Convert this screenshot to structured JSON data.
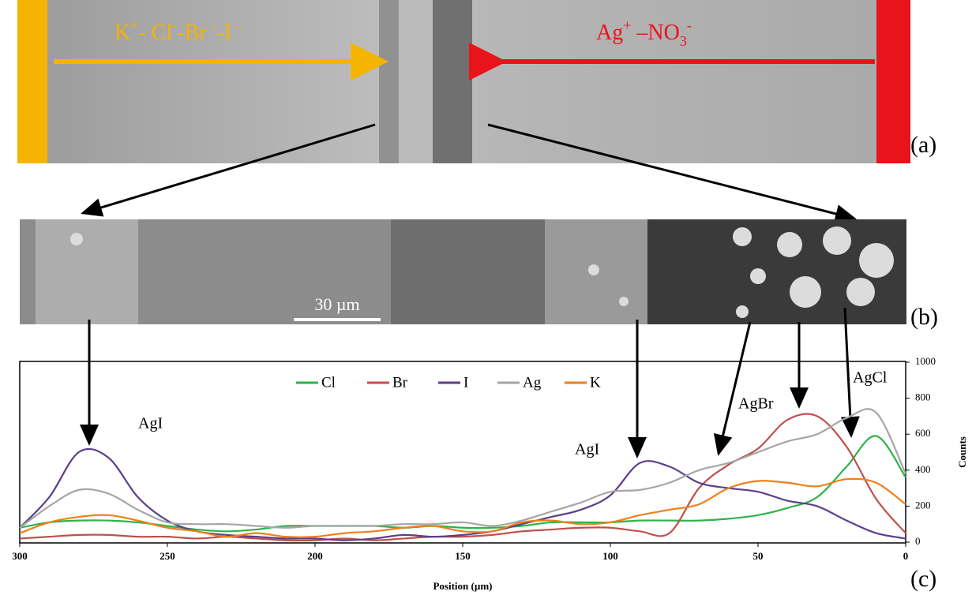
{
  "figure": {
    "panel_labels": [
      "(a)",
      "(b)",
      "(c)"
    ],
    "ions_left": [
      {
        "base": "K",
        "sup": "+"
      },
      {
        "base": "- Cl",
        "sup": "-"
      },
      {
        "base": "-Br ",
        "sup": "-"
      },
      {
        "base": "-I ",
        "sup": "-"
      }
    ],
    "ions_right": [
      {
        "base": "Ag",
        "sup": "+"
      },
      {
        "base": " –NO",
        "sub": "3",
        "sup": "-"
      }
    ],
    "scale_bar": "30 µm"
  },
  "chart_data": {
    "type": "line",
    "x_label": "Position (µm)",
    "y_label": "Counts",
    "x": [
      300,
      290,
      280,
      270,
      260,
      250,
      240,
      230,
      220,
      210,
      200,
      190,
      180,
      170,
      160,
      150,
      140,
      130,
      120,
      110,
      100,
      90,
      80,
      70,
      60,
      50,
      40,
      30,
      20,
      10,
      0
    ],
    "series": [
      {
        "name": "Cl",
        "color": "#2db34a",
        "values": [
          80,
          110,
          120,
          120,
          110,
          90,
          70,
          60,
          70,
          90,
          90,
          90,
          90,
          80,
          90,
          80,
          80,
          90,
          110,
          110,
          110,
          120,
          120,
          120,
          130,
          150,
          190,
          250,
          420,
          590,
          360
        ]
      },
      {
        "name": "Br",
        "color": "#c0504d",
        "values": [
          20,
          30,
          40,
          40,
          30,
          30,
          20,
          30,
          20,
          10,
          10,
          20,
          10,
          20,
          30,
          30,
          40,
          60,
          70,
          80,
          80,
          60,
          50,
          300,
          430,
          520,
          680,
          700,
          530,
          240,
          50
        ]
      },
      {
        "name": "I",
        "color": "#5b3f8c",
        "values": [
          80,
          250,
          500,
          470,
          250,
          120,
          60,
          40,
          30,
          20,
          20,
          10,
          20,
          40,
          30,
          40,
          60,
          100,
          140,
          180,
          260,
          440,
          420,
          330,
          300,
          280,
          230,
          200,
          120,
          50,
          20
        ]
      },
      {
        "name": "Ag",
        "color": "#a6a6a6",
        "values": [
          80,
          200,
          290,
          270,
          180,
          110,
          100,
          100,
          90,
          80,
          90,
          90,
          90,
          100,
          100,
          110,
          90,
          120,
          170,
          220,
          280,
          290,
          330,
          400,
          440,
          500,
          560,
          600,
          690,
          720,
          380
        ]
      },
      {
        "name": "K",
        "color": "#f07f19",
        "values": [
          50,
          110,
          140,
          150,
          120,
          80,
          60,
          30,
          50,
          30,
          30,
          50,
          60,
          80,
          90,
          60,
          60,
          110,
          120,
          100,
          110,
          150,
          180,
          210,
          300,
          340,
          330,
          310,
          350,
          330,
          210
        ]
      }
    ],
    "xlim": [
      300,
      0
    ],
    "xticks": [
      300,
      250,
      200,
      150,
      100,
      50,
      0
    ],
    "ylim": [
      0,
      1000
    ],
    "yticks": [
      0,
      200,
      400,
      600,
      800,
      1000
    ],
    "annotations": [
      "AgI",
      "AgI",
      "AgBr",
      "AgCl"
    ]
  }
}
